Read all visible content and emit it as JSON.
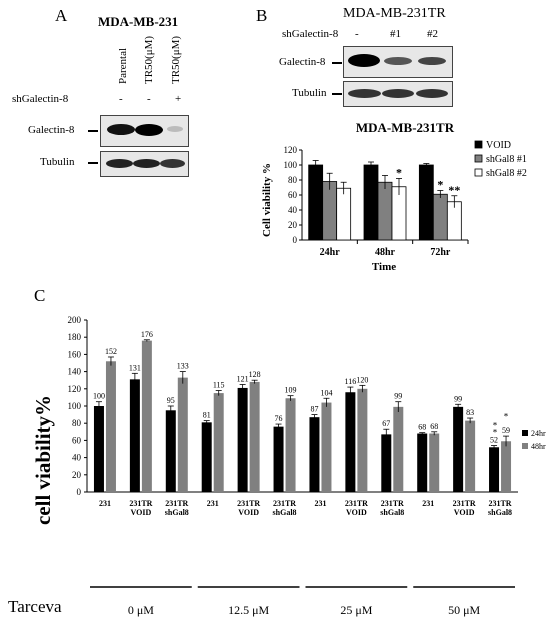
{
  "panels": {
    "a": {
      "letter": "A",
      "cell_line": "MDA-MB-231",
      "lanes": [
        "Parental",
        "TR50(μM)",
        "TR50(μM)"
      ],
      "sh_label": "shGalectin-8",
      "sh_marks": [
        "-",
        "-",
        "+"
      ],
      "blot1": "Galectin-8",
      "blot2": "Tubulin"
    },
    "b": {
      "letter": "B",
      "cell_line": "MDA-MB-231TR",
      "sh_label": "shGalectin-8",
      "sh_marks": [
        "-",
        "#1",
        "#2"
      ],
      "blot1": "Galectin-8",
      "blot2": "Tubulin"
    },
    "c": {
      "letter": "C"
    }
  },
  "chart_data": [
    {
      "type": "bar",
      "title": "MDA-MB-231TR",
      "xlabel": "Time",
      "ylabel": "Cell viability %",
      "categories": [
        "24hr",
        "48hr",
        "72hr"
      ],
      "ylim": [
        0,
        120
      ],
      "yticks": [
        0,
        20,
        40,
        60,
        80,
        100,
        120
      ],
      "legend_position": "right",
      "series": [
        {
          "name": "VOID",
          "color": "#000000",
          "values": [
            100,
            100,
            100
          ],
          "errors": [
            6,
            4,
            2
          ]
        },
        {
          "name": "shGal8 #1",
          "color": "#808080",
          "values": [
            78,
            77,
            61
          ],
          "errors": [
            11,
            9,
            5
          ]
        },
        {
          "name": "shGal8 #2",
          "color": "#ffffff",
          "values": [
            69,
            71,
            51
          ],
          "errors": [
            8,
            11,
            8
          ]
        }
      ],
      "annotations": [
        {
          "category": "48hr",
          "series": "shGal8 #2",
          "text": "*"
        },
        {
          "category": "72hr",
          "series": "shGal8 #1",
          "text": "*"
        },
        {
          "category": "72hr",
          "series": "shGal8 #2",
          "text": "**"
        }
      ]
    },
    {
      "type": "bar",
      "ylabel": "cell viability%",
      "ylim": [
        0,
        200
      ],
      "yticks": [
        0,
        20,
        40,
        60,
        80,
        100,
        120,
        140,
        160,
        180,
        200
      ],
      "legend_position": "right",
      "categories": [
        "231",
        "231TR VOID",
        "231TR shGal8",
        "231",
        "231TR VOID",
        "231TR shGal8",
        "231",
        "231TR VOID",
        "231TR shGal8",
        "231",
        "231TR VOID",
        "231TR shGal8"
      ],
      "category_lines": [
        [
          "231"
        ],
        [
          "231TR",
          "VOID"
        ],
        [
          "231TR",
          "shGal8"
        ],
        [
          "231"
        ],
        [
          "231TR",
          "VOID"
        ],
        [
          "231TR",
          "shGal8"
        ],
        [
          "231"
        ],
        [
          "231TR",
          "VOID"
        ],
        [
          "231TR",
          "shGal8"
        ],
        [
          "231"
        ],
        [
          "231TR",
          "VOID"
        ],
        [
          "231TR",
          "shGal8"
        ]
      ],
      "groups": [
        "0 μM",
        "12.5 μM",
        "25 μM",
        "50 μM"
      ],
      "group_title": "Tarceva",
      "series": [
        {
          "name": "24hr",
          "color": "#000000",
          "values": [
            100,
            131,
            95,
            81,
            121,
            76,
            87,
            116,
            67,
            68,
            99,
            52
          ],
          "errors": [
            5,
            7,
            5,
            2,
            4,
            3,
            3,
            6,
            6,
            1,
            3,
            2
          ],
          "labels": [
            "100",
            "131",
            "95",
            "81",
            "121",
            "76",
            "87",
            "116",
            "67",
            "68",
            "99",
            "52"
          ]
        },
        {
          "name": "48hr",
          "color": "#808080",
          "values": [
            152,
            176,
            133,
            115,
            128,
            109,
            104,
            120,
            99,
            68,
            83,
            59
          ],
          "errors": [
            5,
            1,
            7,
            3,
            2,
            3,
            5,
            4,
            6,
            2,
            3,
            6
          ],
          "labels": [
            "152",
            "176",
            "133",
            "115",
            "128",
            "109",
            "104",
            "120",
            "99",
            "68",
            "83",
            "59"
          ]
        }
      ],
      "annotations": [
        {
          "index": 11,
          "series": "24hr",
          "text": "*"
        },
        {
          "index": 11,
          "series": "24hr",
          "text": "*"
        },
        {
          "index": 11,
          "series": "48hr",
          "text": "*"
        }
      ]
    }
  ]
}
